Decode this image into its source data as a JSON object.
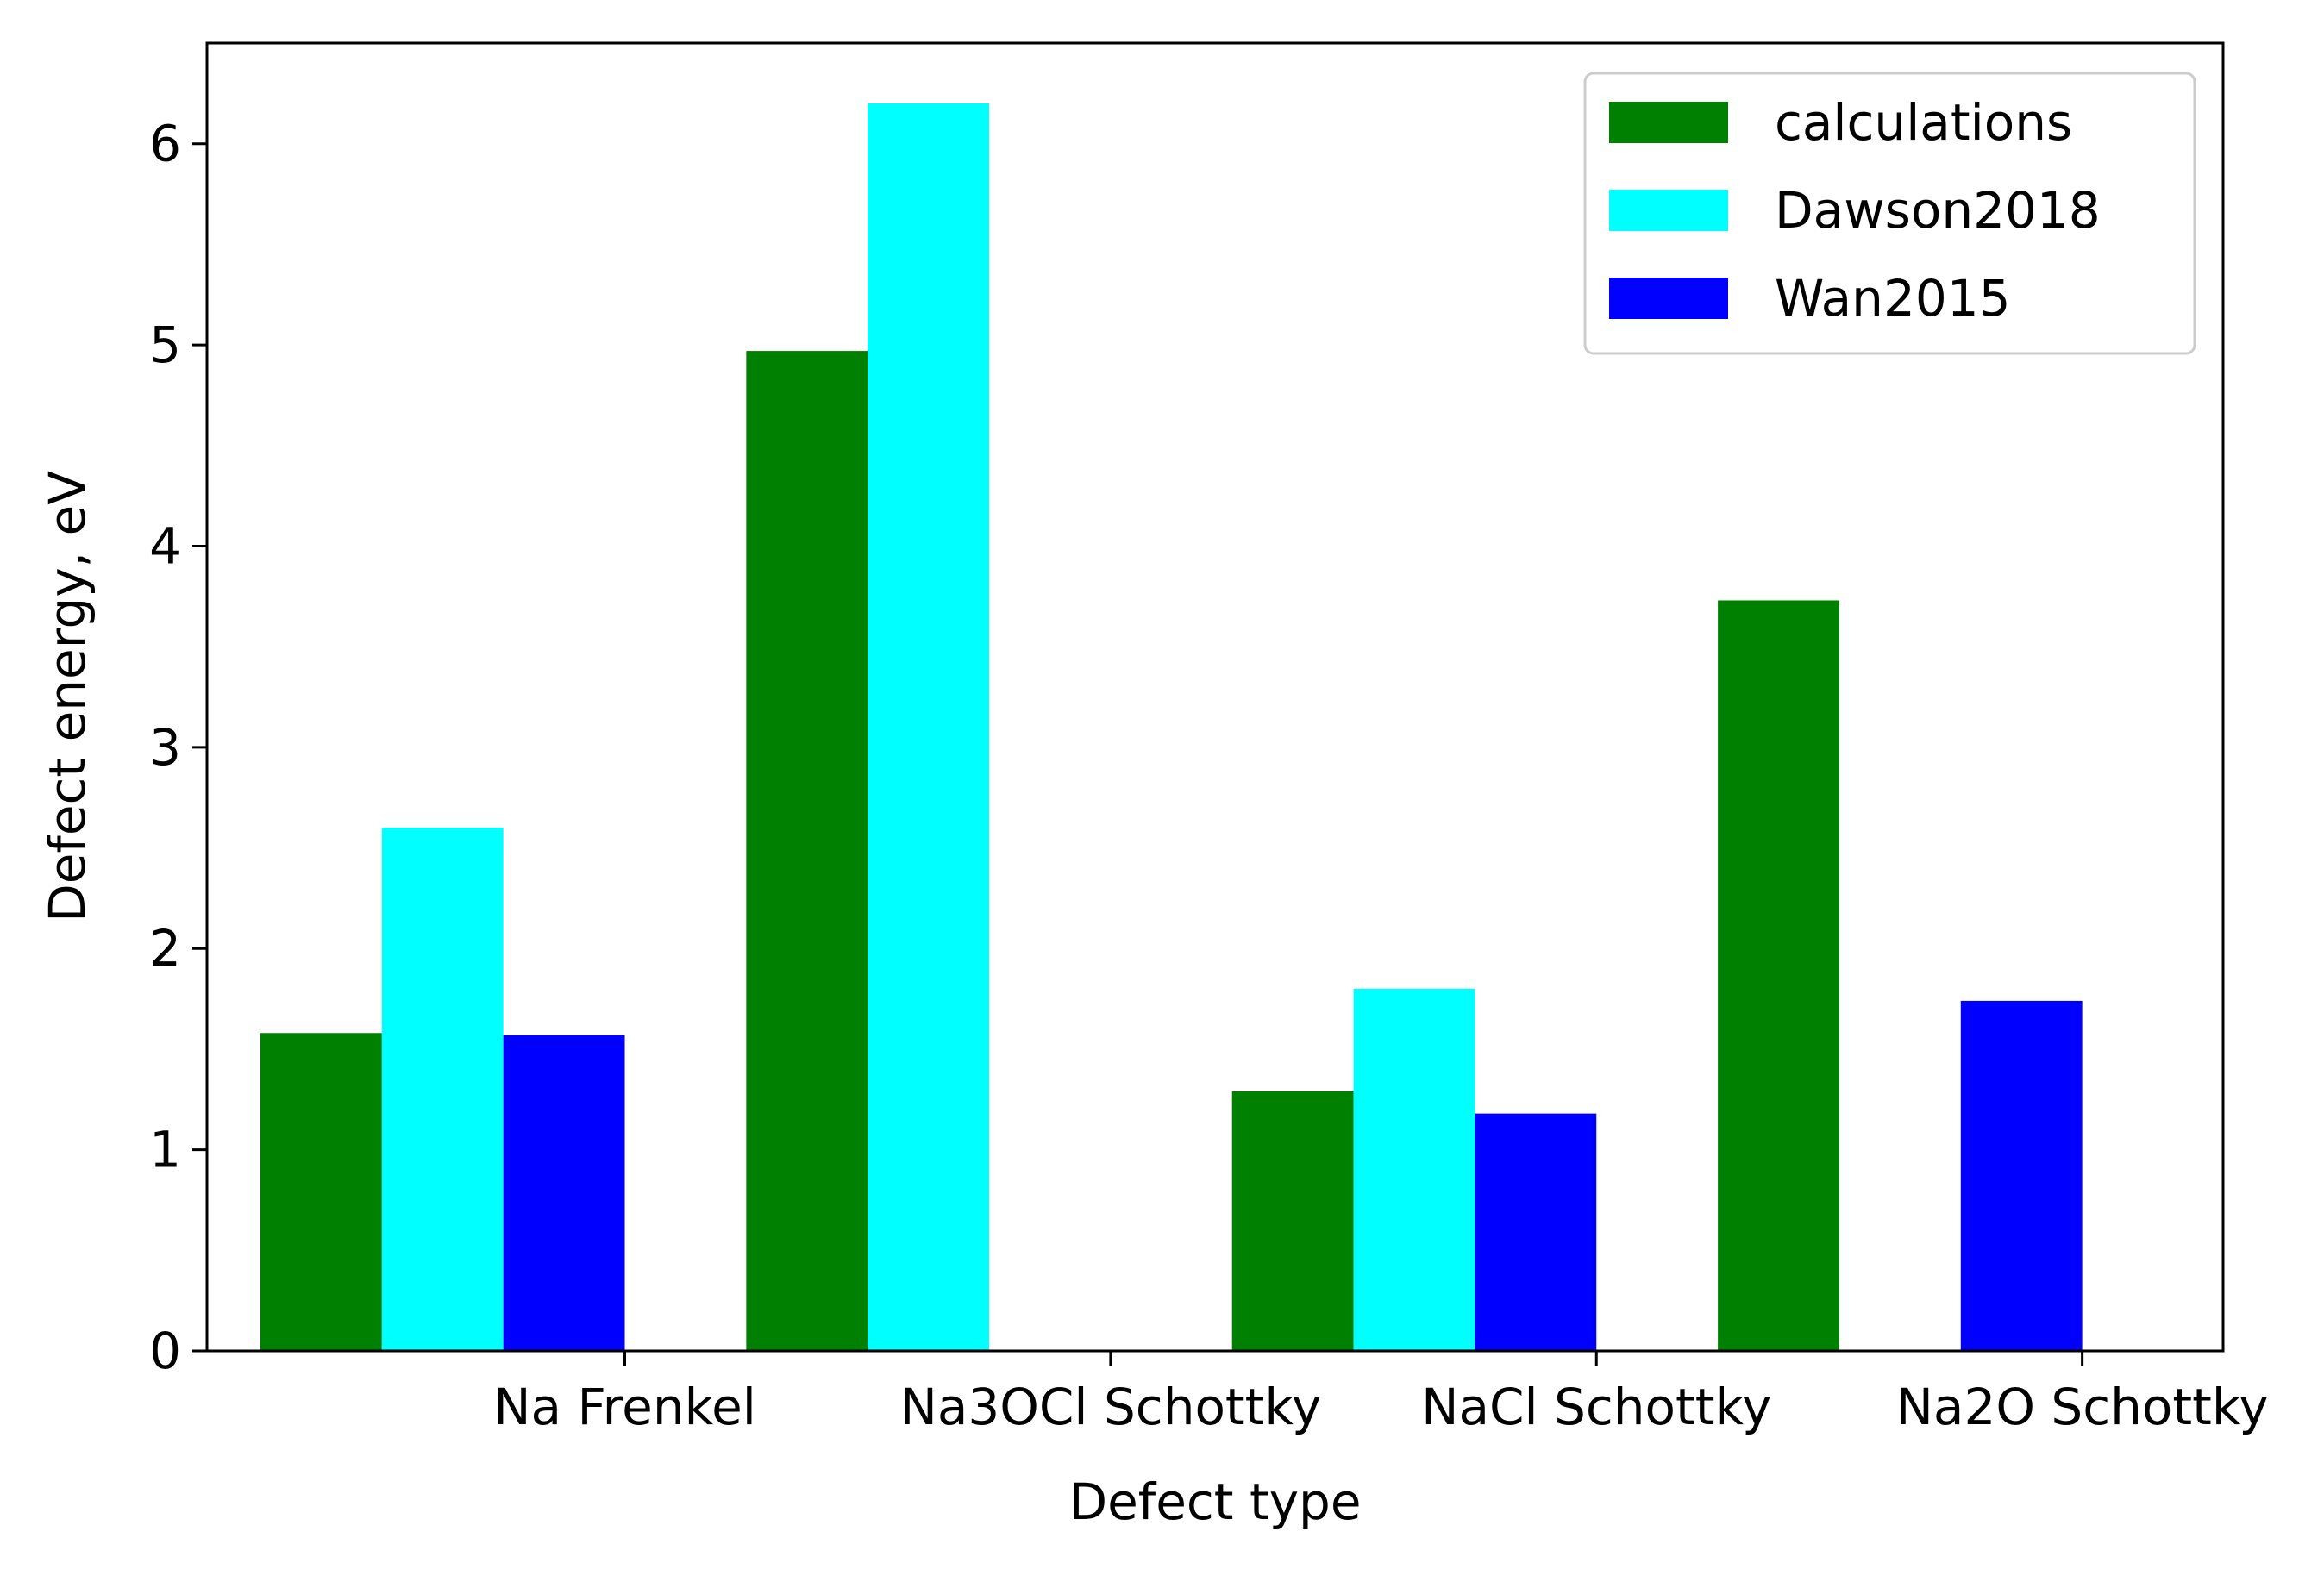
{
  "chart_data": {
    "type": "bar",
    "categories": [
      "Na Frenkel",
      "Na3OCl Schottky",
      "NaCl Schottky",
      "Na2O Schottky"
    ],
    "series": [
      {
        "name": "calculations",
        "color": "#008000",
        "values": [
          1.58,
          4.97,
          1.29,
          3.73
        ]
      },
      {
        "name": "Dawson2018",
        "color": "#00FFFF",
        "values": [
          2.6,
          6.2,
          1.8,
          null
        ]
      },
      {
        "name": "Wan2015",
        "color": "#0000FF",
        "values": [
          1.57,
          null,
          1.18,
          1.74
        ]
      }
    ],
    "xlabel": "Defect type",
    "ylabel": "Defect energy, eV",
    "ylim": [
      0,
      6.5
    ],
    "yticks": [
      0,
      1,
      2,
      3,
      4,
      5,
      6
    ],
    "grid": false,
    "legend_position": "top-right"
  }
}
